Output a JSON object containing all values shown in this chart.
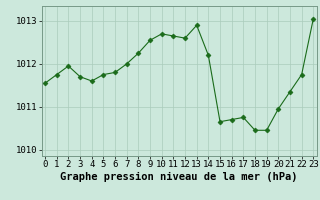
{
  "x": [
    0,
    1,
    2,
    3,
    4,
    5,
    6,
    7,
    8,
    9,
    10,
    11,
    12,
    13,
    14,
    15,
    16,
    17,
    18,
    19,
    20,
    21,
    22,
    23
  ],
  "y": [
    1011.55,
    1011.75,
    1011.95,
    1011.7,
    1011.6,
    1011.75,
    1011.8,
    1012.0,
    1012.25,
    1012.55,
    1012.7,
    1012.65,
    1012.6,
    1012.9,
    1012.2,
    1010.65,
    1010.7,
    1010.75,
    1010.45,
    1010.45,
    1010.95,
    1011.35,
    1011.75,
    1013.05
  ],
  "line_color": "#1a6b1a",
  "marker_color": "#1a6b1a",
  "bg_color": "#cce8dc",
  "grid_color": "#aaccbb",
  "xlabel": "Graphe pression niveau de la mer (hPa)",
  "xlabel_fontsize": 7.5,
  "tick_fontsize": 6.5,
  "yticks": [
    1010,
    1011,
    1012,
    1013
  ],
  "ylim": [
    1009.85,
    1013.35
  ],
  "xlim": [
    -0.3,
    23.3
  ],
  "xtick_labels": [
    "0",
    "1",
    "2",
    "3",
    "4",
    "5",
    "6",
    "7",
    "8",
    "9",
    "10",
    "11",
    "12",
    "13",
    "14",
    "15",
    "16",
    "17",
    "18",
    "19",
    "20",
    "21",
    "22",
    "23"
  ]
}
